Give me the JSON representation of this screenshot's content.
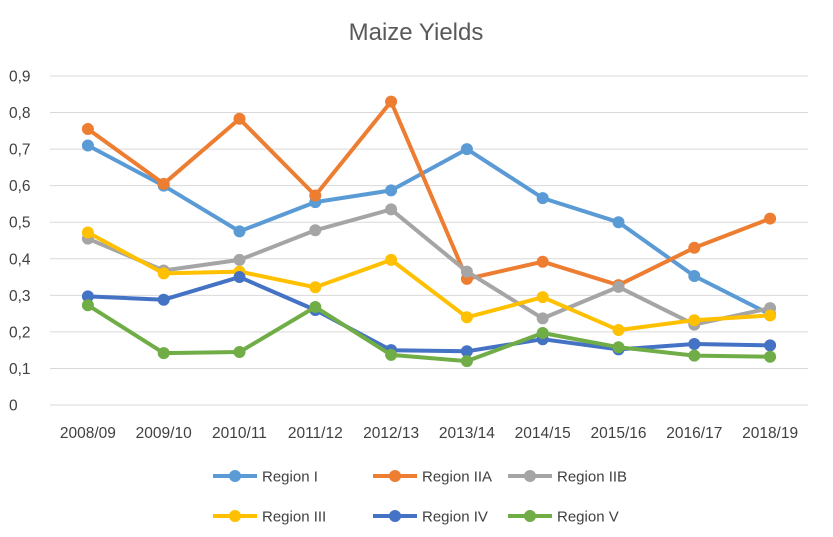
{
  "chart_data": {
    "type": "line",
    "title": "Maize Yields",
    "xlabel": "",
    "ylabel": "",
    "ylim": [
      0,
      0.9
    ],
    "yticks": [
      "0",
      "0,1",
      "0,2",
      "0,3",
      "0,4",
      "0,5",
      "0,6",
      "0,7",
      "0,8",
      "0,9"
    ],
    "grid": true,
    "legend_position": "bottom",
    "categories": [
      "2008/09",
      "2009/10",
      "2010/11",
      "2011/12",
      "2012/13",
      "2013/14",
      "2014/15",
      "2015/16",
      "2016/17",
      "2018/19"
    ],
    "series": [
      {
        "name": "Region I",
        "color": "#5b9bd5",
        "values": [
          0.71,
          0.6,
          0.475,
          0.555,
          0.587,
          0.7,
          0.566,
          0.5,
          0.353,
          0.248
        ]
      },
      {
        "name": "Region IIA",
        "color": "#ed7d31",
        "values": [
          0.755,
          0.605,
          0.783,
          0.573,
          0.83,
          0.345,
          0.392,
          0.328,
          0.43,
          0.51
        ]
      },
      {
        "name": "Region IIB",
        "color": "#a5a5a5",
        "values": [
          0.455,
          0.368,
          0.397,
          0.478,
          0.535,
          0.365,
          0.237,
          0.323,
          0.22,
          0.265
        ]
      },
      {
        "name": "Region III",
        "color": "#ffc000",
        "values": [
          0.472,
          0.36,
          0.365,
          0.322,
          0.397,
          0.24,
          0.295,
          0.205,
          0.232,
          0.245
        ]
      },
      {
        "name": "Region IV",
        "color": "#4472c4",
        "values": [
          0.297,
          0.288,
          0.35,
          0.26,
          0.15,
          0.147,
          0.18,
          0.152,
          0.167,
          0.163
        ]
      },
      {
        "name": "Region V",
        "color": "#70ad47",
        "values": [
          0.273,
          0.142,
          0.145,
          0.268,
          0.137,
          0.12,
          0.197,
          0.158,
          0.135,
          0.132
        ]
      }
    ]
  }
}
